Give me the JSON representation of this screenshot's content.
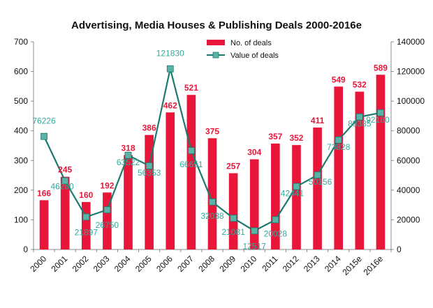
{
  "chart_data": {
    "type": "bar",
    "title": "Advertising, Media Houses & Publishing Deals 2000-2016e",
    "categories": [
      "2000",
      "2001",
      "2002",
      "2003",
      "2004",
      "2005",
      "2006",
      "2007",
      "2008",
      "2009",
      "2010",
      "2011",
      "2012",
      "2013",
      "2014",
      "2015e",
      "2016e"
    ],
    "series": [
      {
        "name": "No. of deals",
        "type": "bar",
        "axis": "left",
        "color": "#e8173a",
        "label_color": "#e8173a",
        "values": [
          166,
          245,
          160,
          192,
          318,
          386,
          462,
          521,
          375,
          257,
          304,
          357,
          352,
          411,
          549,
          532,
          589
        ]
      },
      {
        "name": "Value of deals",
        "type": "line",
        "axis": "right",
        "color": "#1a7a6e",
        "marker_color": "#5ab3a6",
        "label_color": "#35a99c",
        "values": [
          76226,
          46280,
          21897,
          26750,
          63522,
          56353,
          121830,
          66651,
          32038,
          21081,
          12517,
          20028,
          42441,
          50156,
          73828,
          89385,
          92180
        ]
      }
    ],
    "y_left": {
      "min": 0,
      "max": 700,
      "ticks": [
        0,
        100,
        200,
        300,
        400,
        500,
        600,
        700
      ]
    },
    "y_right": {
      "min": 0,
      "max": 140000,
      "ticks": [
        0,
        20000,
        40000,
        60000,
        80000,
        100000,
        120000,
        140000
      ]
    },
    "legend_position": "top-right",
    "grid": false
  }
}
